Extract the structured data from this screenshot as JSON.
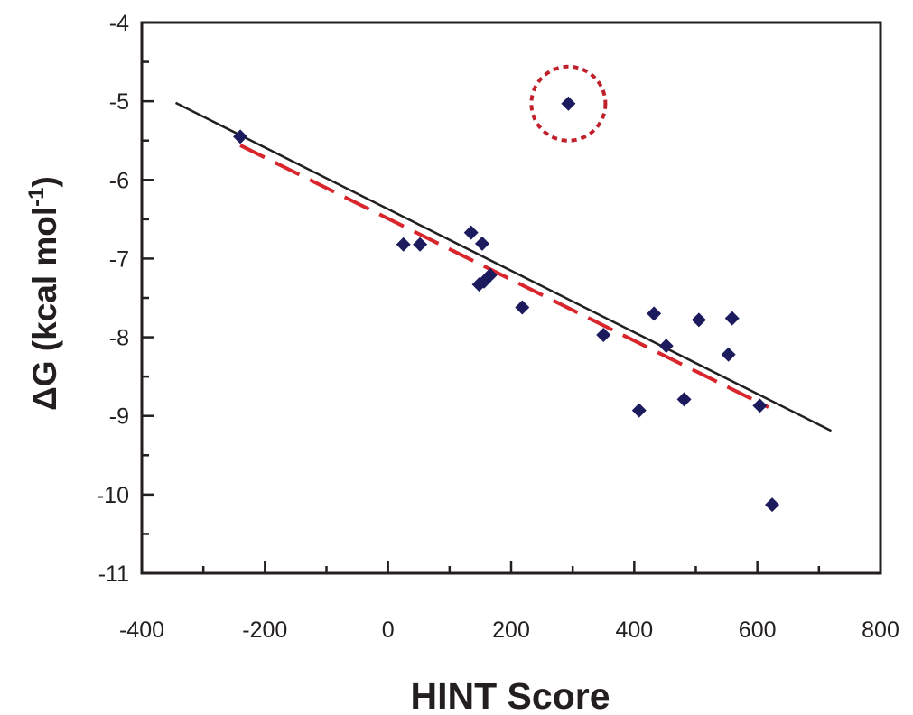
{
  "chart_data": {
    "type": "scatter",
    "xlabel": "HINT Score",
    "ylabel_main": "ΔG (kcal mol",
    "ylabel_sup": "-1",
    "ylabel_end": ")",
    "xlim": [
      -400,
      800
    ],
    "ylim": [
      -11,
      -4
    ],
    "x_ticks": [
      "-400",
      "-200",
      "0",
      "200",
      "400",
      "600",
      "800"
    ],
    "y_ticks": [
      "-4",
      "-5",
      "-6",
      "-7",
      "-8",
      "-9",
      "-10",
      "-11"
    ],
    "grid": false,
    "points": [
      {
        "x": -240,
        "y": -5.45
      },
      {
        "x": 25,
        "y": -6.82
      },
      {
        "x": 52,
        "y": -6.82
      },
      {
        "x": 135,
        "y": -6.67
      },
      {
        "x": 153,
        "y": -6.81
      },
      {
        "x": 148,
        "y": -7.33
      },
      {
        "x": 156,
        "y": -7.29
      },
      {
        "x": 166,
        "y": -7.21
      },
      {
        "x": 218,
        "y": -7.62
      },
      {
        "x": 293,
        "y": -5.03
      },
      {
        "x": 350,
        "y": -7.97
      },
      {
        "x": 408,
        "y": -8.93
      },
      {
        "x": 432,
        "y": -7.7
      },
      {
        "x": 452,
        "y": -8.11
      },
      {
        "x": 481,
        "y": -8.79
      },
      {
        "x": 505,
        "y": -7.78
      },
      {
        "x": 553,
        "y": -8.22
      },
      {
        "x": 559,
        "y": -7.76
      },
      {
        "x": 604,
        "y": -8.87
      },
      {
        "x": 624,
        "y": -10.13
      }
    ],
    "outlier": {
      "x": 293,
      "y": -5.03
    },
    "fit_all": {
      "x": [
        -345,
        720
      ],
      "y": [
        -5.02,
        -9.19
      ]
    },
    "fit_excl_outlier": {
      "x": [
        -240,
        618
      ],
      "y": [
        -5.56,
        -8.89
      ]
    },
    "colors": {
      "points": "#1b1b5e",
      "fit_all": "#231f20",
      "fit_excl_outlier": "#d9262c",
      "outlier_circle": "#c0202a",
      "axis": "#231f20"
    }
  }
}
